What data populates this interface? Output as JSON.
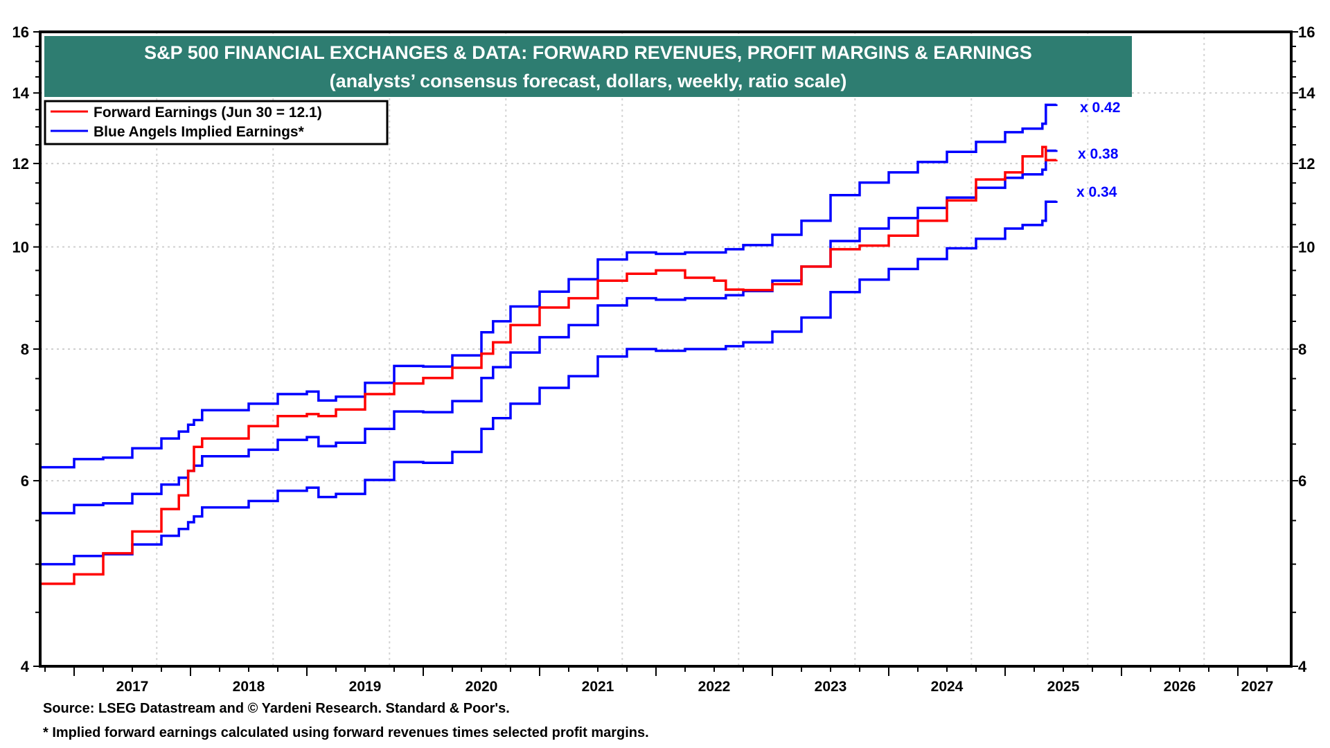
{
  "chart_data": {
    "type": "line",
    "title": "S&P 500 FINANCIAL EXCHANGES & DATA: FORWARD REVENUES, PROFIT MARGINS & EARNINGS",
    "subtitle": "(analysts’ consensus forecast, dollars, weekly, ratio scale)",
    "xlabel": "",
    "ylabel": "",
    "y_scale": "log",
    "ylim": [
      4,
      16
    ],
    "xlim": [
      2016.71,
      2027.5
    ],
    "y_ticks": [
      4,
      6,
      8,
      10,
      12,
      14,
      16
    ],
    "y_tick_labels": [
      "4",
      "6",
      "8",
      "10",
      "12",
      "14",
      "16"
    ],
    "x_tick_labels": [
      "2017",
      "2018",
      "2019",
      "2020",
      "2021",
      "2022",
      "2023",
      "2024",
      "2025",
      "2026",
      "2027"
    ],
    "grid": true,
    "legend_position": "top-left",
    "legend": [
      {
        "label": "Forward Earnings (Jun 30 = 12.1)",
        "color": "#ff0000"
      },
      {
        "label": "Blue Angels Implied Earnings*",
        "color": "#0000ff"
      }
    ],
    "annotations": [
      {
        "text": "x 0.42",
        "series": "Implied x0.42",
        "color": "#0000ff"
      },
      {
        "text": "x 0.38",
        "series": "Implied x0.38",
        "color": "#0000ff"
      },
      {
        "text": "x 0.34",
        "series": "Implied x0.34",
        "color": "#0000ff"
      }
    ],
    "x": [
      2016.71,
      2017.0,
      2017.25,
      2017.5,
      2017.75,
      2017.9,
      2017.98,
      2018.03,
      2018.1,
      2018.5,
      2018.75,
      2019.0,
      2019.1,
      2019.25,
      2019.5,
      2019.75,
      2020.0,
      2020.25,
      2020.5,
      2020.6,
      2020.75,
      2021.0,
      2021.25,
      2021.5,
      2021.75,
      2022.0,
      2022.25,
      2022.5,
      2022.6,
      2022.75,
      2023.0,
      2023.25,
      2023.5,
      2023.75,
      2024.0,
      2024.25,
      2024.5,
      2024.75,
      2025.0,
      2025.15,
      2025.32,
      2025.35,
      2025.44
    ],
    "series": [
      {
        "name": "Forward Earnings",
        "color": "#ff0000",
        "values": [
          4.79,
          4.89,
          5.12,
          5.37,
          5.64,
          5.81,
          6.13,
          6.46,
          6.58,
          6.76,
          6.91,
          6.94,
          6.91,
          7.01,
          7.25,
          7.42,
          7.51,
          7.68,
          7.92,
          8.12,
          8.43,
          8.76,
          8.94,
          9.29,
          9.43,
          9.5,
          9.35,
          9.29,
          9.11,
          9.1,
          9.22,
          9.58,
          9.95,
          10.03,
          10.25,
          10.59,
          11.07,
          11.59,
          11.77,
          12.19,
          12.44,
          12.09,
          12.1
        ]
      },
      {
        "name": "Implied x0.42",
        "color": "#0000ff",
        "values": [
          6.18,
          6.29,
          6.31,
          6.44,
          6.58,
          6.68,
          6.78,
          6.85,
          7.0,
          7.1,
          7.25,
          7.29,
          7.15,
          7.21,
          7.43,
          7.71,
          7.7,
          7.89,
          8.3,
          8.5,
          8.78,
          9.07,
          9.32,
          9.73,
          9.88,
          9.85,
          9.88,
          9.88,
          9.95,
          10.04,
          10.27,
          10.59,
          11.2,
          11.51,
          11.77,
          12.04,
          12.31,
          12.58,
          12.85,
          12.95,
          13.09,
          13.64,
          13.66
        ]
      },
      {
        "name": "Implied x0.38",
        "color": "#0000ff",
        "values": [
          5.59,
          5.69,
          5.71,
          5.83,
          5.95,
          6.04,
          6.13,
          6.2,
          6.33,
          6.42,
          6.56,
          6.6,
          6.47,
          6.52,
          6.72,
          6.98,
          6.97,
          7.14,
          7.51,
          7.69,
          7.94,
          8.21,
          8.43,
          8.8,
          8.94,
          8.91,
          8.94,
          8.94,
          9.0,
          9.08,
          9.29,
          9.58,
          10.13,
          10.41,
          10.65,
          10.89,
          11.14,
          11.38,
          11.63,
          11.72,
          11.84,
          12.34,
          12.36
        ]
      },
      {
        "name": "Implied x0.34",
        "color": "#0000ff",
        "values": [
          5.0,
          5.09,
          5.11,
          5.22,
          5.32,
          5.4,
          5.48,
          5.55,
          5.66,
          5.74,
          5.87,
          5.91,
          5.79,
          5.83,
          6.01,
          6.25,
          6.24,
          6.39,
          6.72,
          6.88,
          7.1,
          7.35,
          7.54,
          7.87,
          8.0,
          7.97,
          8.0,
          8.0,
          8.05,
          8.12,
          8.31,
          8.57,
          9.06,
          9.31,
          9.53,
          9.74,
          9.97,
          10.18,
          10.41,
          10.49,
          10.59,
          11.04,
          11.06
        ]
      }
    ]
  },
  "footnotes": {
    "source": "Source: LSEG Datastream and © Yardeni Research. Standard & Poor's.",
    "note": "* Implied forward earnings calculated using forward revenues times selected profit margins."
  },
  "colors": {
    "title_banner": "#2e7d71",
    "forward_earnings": "#ff0000",
    "implied_earnings": "#0000ff"
  }
}
